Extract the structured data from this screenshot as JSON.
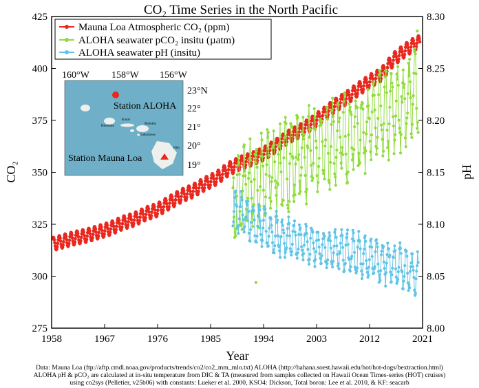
{
  "chart_data": {
    "type": "line",
    "title": "CO₂ Time Series in the North Pacific",
    "xlabel": "Year",
    "ylabel": "CO₂",
    "y2label": "pH",
    "xlim": [
      1958,
      2021
    ],
    "ylim": [
      275,
      425
    ],
    "y2lim": [
      8.0,
      8.3
    ],
    "xticks": [
      "1958",
      "1967",
      "1976",
      "1985",
      "1994",
      "2003",
      "2012",
      "2021"
    ],
    "yticks": [
      "275",
      "300",
      "325",
      "350",
      "375",
      "400",
      "425"
    ],
    "y2ticks": [
      "8.00",
      "8.05",
      "8.10",
      "8.15",
      "8.20",
      "8.25",
      "8.30"
    ],
    "grid": false,
    "legend_position": "top-left",
    "series": [
      {
        "name": "Mauna Loa Atmospheric CO₂ (ppm)",
        "axis": "left",
        "color": "#e8281e",
        "x": [
          1958,
          1960,
          1962,
          1964,
          1966,
          1968,
          1970,
          1972,
          1974,
          1976,
          1978,
          1980,
          1982,
          1984,
          1986,
          1988,
          1990,
          1992,
          1994,
          1996,
          1998,
          2000,
          2002,
          2004,
          2006,
          2008,
          2010,
          2012,
          2014,
          2016,
          2018,
          2020
        ],
        "values": [
          315.3,
          316.9,
          318.4,
          319.6,
          321.3,
          323.0,
          325.6,
          327.3,
          330.1,
          332.0,
          335.4,
          338.7,
          341.1,
          344.4,
          347.2,
          351.5,
          354.4,
          356.4,
          358.9,
          362.6,
          366.7,
          369.7,
          373.2,
          377.5,
          381.9,
          385.6,
          389.9,
          393.8,
          397.1,
          404.2,
          408.7,
          412.5
        ],
        "seasonal_amplitude_ppm": 3.2
      },
      {
        "name": "ALOHA seawater pCO₂ insitu (µatm)",
        "axis": "left",
        "color": "#8fdc3c",
        "x": [
          1989,
          1991,
          1993,
          1995,
          1997,
          1999,
          2001,
          2003,
          2005,
          2007,
          2009,
          2011,
          2013,
          2015,
          2017,
          2019,
          2020
        ],
        "values": [
          335,
          342,
          346,
          350,
          352,
          355,
          358,
          360,
          363,
          366,
          369,
          372,
          375,
          378,
          381,
          386,
          390
        ],
        "seasonal_amplitude_uatm": 18,
        "max_value": 418,
        "min_value": 297
      },
      {
        "name": "ALOHA seawater pH (insitu)",
        "axis": "right",
        "color": "#5fc4e6",
        "x": [
          1989,
          1991,
          1993,
          1995,
          1997,
          1999,
          2001,
          2003,
          2005,
          2007,
          2009,
          2011,
          2013,
          2015,
          2017,
          2019,
          2020
        ],
        "values": [
          8.112,
          8.107,
          8.1,
          8.094,
          8.088,
          8.084,
          8.082,
          8.079,
          8.077,
          8.074,
          8.071,
          8.069,
          8.066,
          8.064,
          8.059,
          8.055,
          8.052
        ],
        "seasonal_amplitude": 0.018,
        "min_value": 8.034
      }
    ]
  },
  "inset_map": {
    "lon_labels": [
      "160°W",
      "158°W",
      "156°W"
    ],
    "lat_labels": [
      "23°N",
      "22°",
      "21°",
      "20°",
      "19°"
    ],
    "station_aloha_label": "Station ALOHA",
    "station_mauna_loa_label": "Station Mauna Loa",
    "island_labels": [
      "Kauai",
      "Honolulu",
      "Molokai",
      "Kahoolawe",
      "Hilo"
    ],
    "sea_color": "#6fb0c8",
    "marker_color": "#e8281e"
  },
  "footnote": {
    "line1": "Data: Mauna Loa (ftp://aftp.cmdl.noaa.gov/products/trends/co2/co2_mm_mlo.txt)  ALOHA (http://hahana.soest.hawaii.edu/hot/hot-dogs/bextraction.html)",
    "line2": "ALOHA pH & pCO₂ are calculated at in-situ temperature from DIC & TA (measured from samples collected on Hawaii Ocean Times-series (HOT) cruises)",
    "line3": "using co2sys (Pelletier, v25b06) with constants: Lueker et al. 2000, KSO4: Dickson, Total boron: Lee et al. 2010, & KF: seacarb"
  }
}
